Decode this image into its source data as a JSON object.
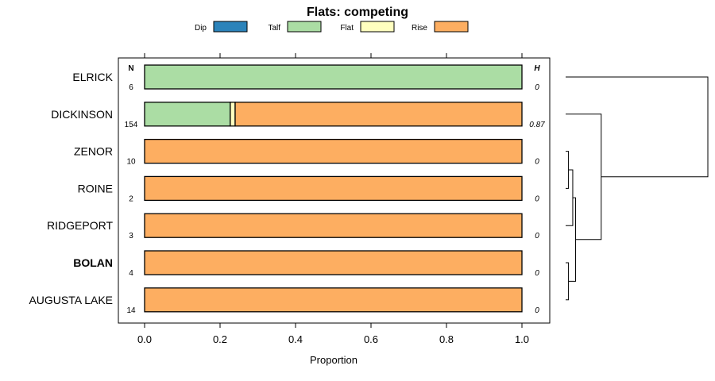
{
  "chart_data": {
    "type": "bar",
    "orientation": "horizontal",
    "stacked": true,
    "title": "Flats: competing",
    "xlabel": "Proportion",
    "ylabel": "",
    "xlim": [
      0,
      1
    ],
    "xticks": [
      0.0,
      0.2,
      0.4,
      0.6,
      0.8,
      1.0
    ],
    "xtick_labels": [
      "0.0",
      "0.2",
      "0.4",
      "0.6",
      "0.8",
      "1.0"
    ],
    "legend_position": "top",
    "n_header": "N",
    "h_header": "H",
    "categories": [
      "ELRICK",
      "DICKINSON",
      "ZENOR",
      "ROINE",
      "RIDGEPORT",
      "BOLAN",
      "AUGUSTA LAKE"
    ],
    "bold_category": "BOLAN",
    "n_values": [
      "6",
      "154",
      "10",
      "2",
      "3",
      "4",
      "14"
    ],
    "h_values": [
      "0",
      "0.87",
      "0",
      "0",
      "0",
      "0",
      "0"
    ],
    "series": [
      {
        "name": "Dip",
        "color": "#2b83ba",
        "values": [
          0,
          0,
          0,
          0,
          0,
          0,
          0
        ]
      },
      {
        "name": "Talf",
        "color": "#abdda4",
        "values": [
          1.0,
          0.227,
          0,
          0,
          0,
          0,
          0
        ]
      },
      {
        "name": "Flat",
        "color": "#ffffbf",
        "values": [
          0,
          0.013,
          0,
          0,
          0,
          0,
          0
        ]
      },
      {
        "name": "Rise",
        "color": "#fdae61",
        "values": [
          0,
          0.76,
          1.0,
          1.0,
          1.0,
          1.0,
          1.0
        ]
      }
    ],
    "dendrogram": {
      "leaves": [
        "ELRICK",
        "DICKINSON",
        "ZENOR",
        "ROINE",
        "RIDGEPORT",
        "BOLAN",
        "AUGUSTA LAKE"
      ],
      "merges": [
        {
          "a": "ZENOR",
          "b": "ROINE",
          "height": 0.02
        },
        {
          "a": "BOLAN",
          "b": "AUGUSTA LAKE",
          "height": 0.02
        },
        {
          "a": "ZENOR+ROINE",
          "b": "RIDGEPORT",
          "height": 0.05
        },
        {
          "a": "ZENOR+ROINE+RIDGEPORT",
          "b": "BOLAN+AUGUSTA LAKE",
          "height": 0.07
        },
        {
          "a": "DICKINSON",
          "b": "ZENOR+ROINE+RIDGEPORT+BOLAN+AUGUSTA LAKE",
          "height": 0.25
        },
        {
          "a": "ELRICK",
          "b": "DICKINSON+ZENOR+ROINE+RIDGEPORT+BOLAN+AUGUSTA LAKE",
          "height": 1.0
        }
      ]
    }
  }
}
